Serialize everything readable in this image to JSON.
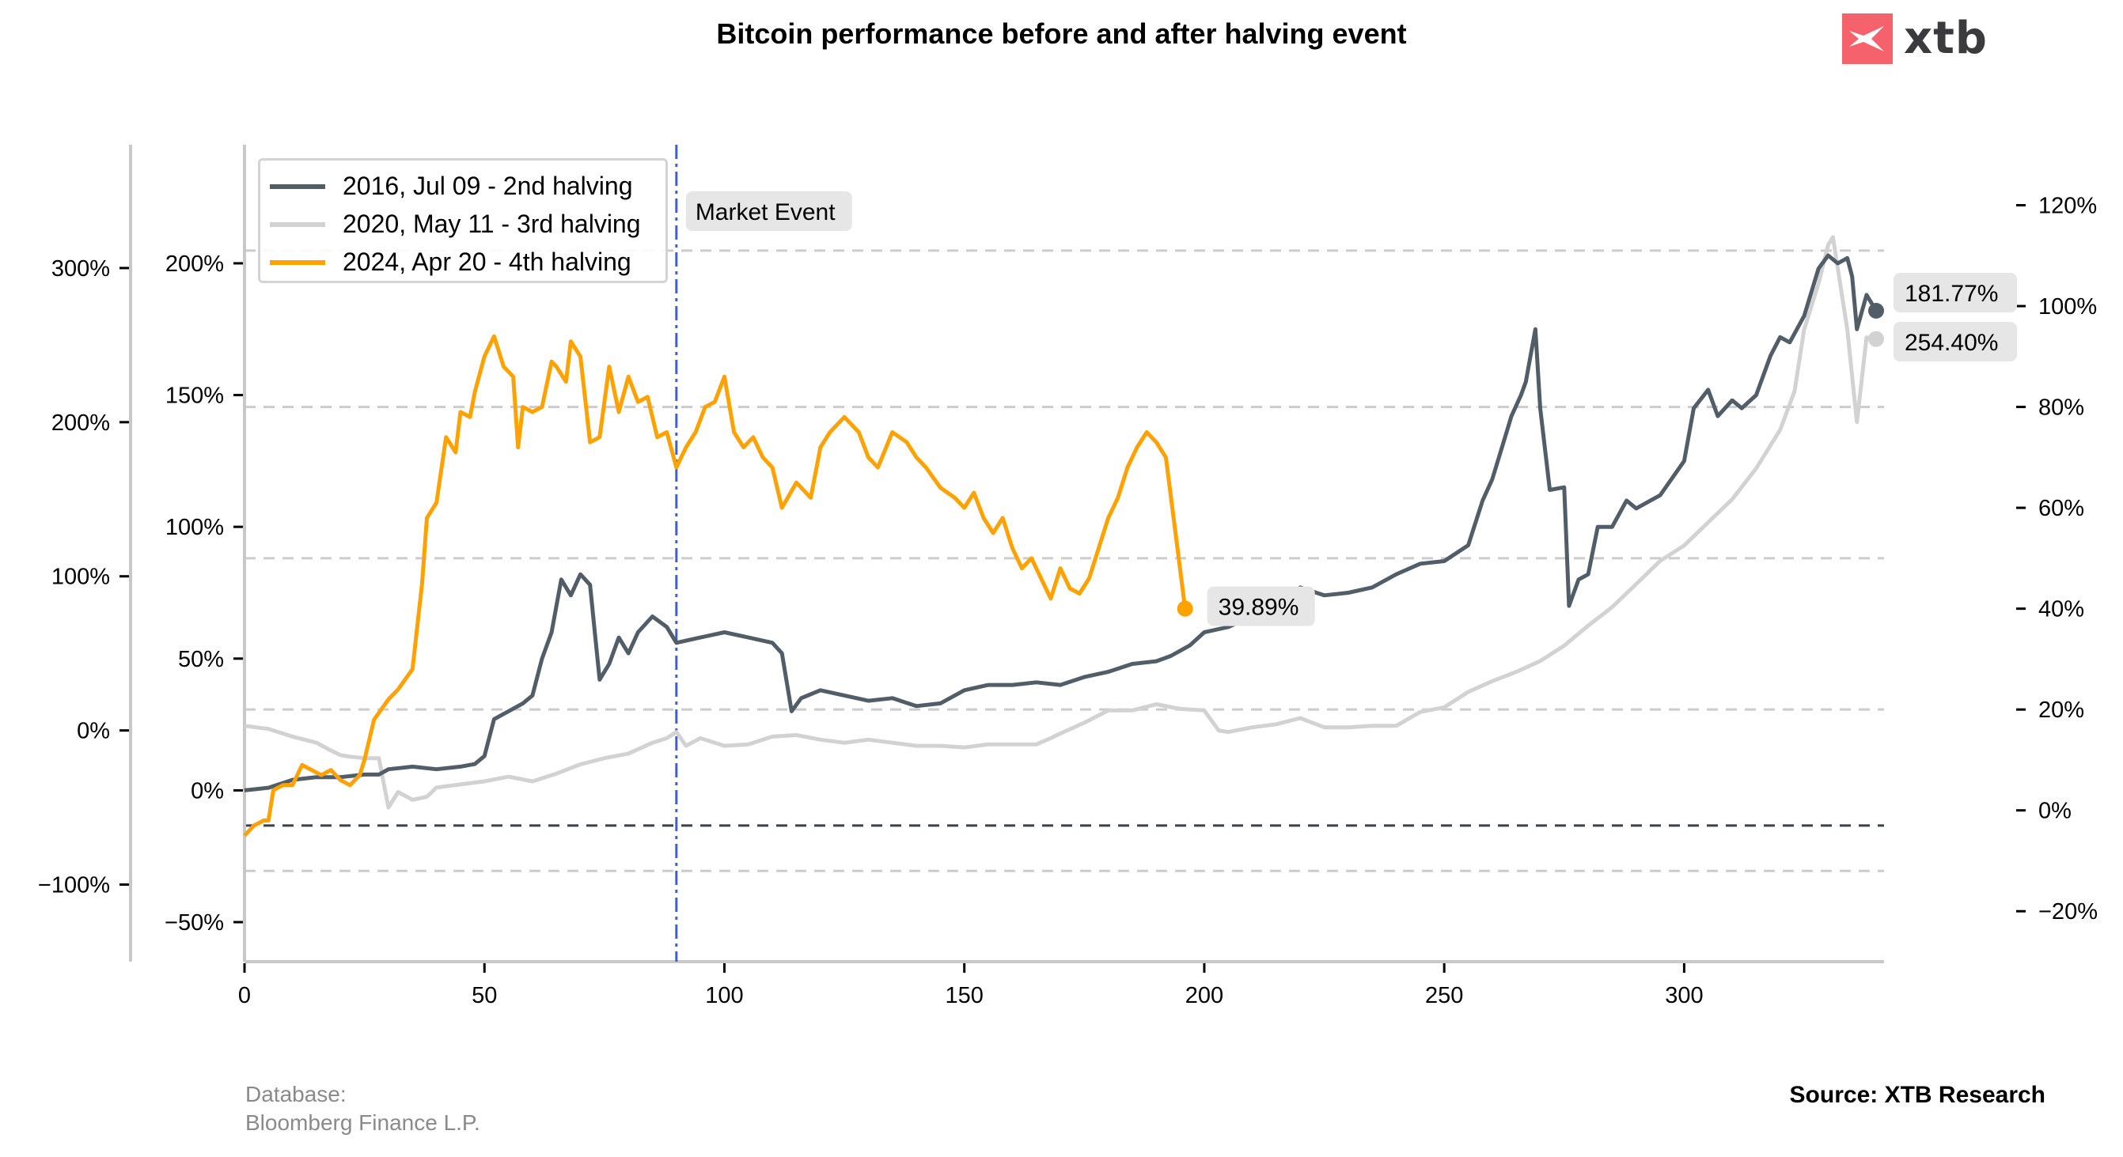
{
  "header": {
    "title": "Bitcoin performance before and after halving event",
    "logo_text": "xtb",
    "logo_color": "#f5626c"
  },
  "footer": {
    "database_label": "Database:",
    "database_value": "Bloomberg Finance L.P.",
    "source": "Source: XTB Research"
  },
  "chart_data": {
    "type": "line",
    "title": "Bitcoin performance before and after halving event",
    "xlabel": "",
    "xlim": [
      0,
      340
    ],
    "x_ticks": [
      0,
      50,
      100,
      150,
      200,
      250,
      300
    ],
    "axes": {
      "outer_left": {
        "ylim": [
          -150,
          380
        ],
        "ticks": [
          -100,
          0,
          100,
          200,
          300
        ],
        "tick_labels": [
          "−100%",
          "0%",
          "100%",
          "200%",
          "300%"
        ]
      },
      "inner_left": {
        "ylim": [
          -65,
          245
        ],
        "ticks": [
          -50,
          0,
          50,
          100,
          150,
          200
        ],
        "tick_labels": [
          "−50%",
          "0%",
          "50%",
          "100%",
          "150%",
          "200%"
        ]
      },
      "right": {
        "ylim": [
          -30,
          132
        ],
        "ticks": [
          -20,
          0,
          20,
          40,
          60,
          80,
          100,
          120
        ],
        "tick_labels": [
          "−20%",
          "0%",
          "20%",
          "40%",
          "60%",
          "80%",
          "100%",
          "120%"
        ]
      }
    },
    "gridlines_right_axis": [
      -12,
      20,
      50,
      80,
      111
    ],
    "zero_line_right_axis": -3,
    "market_event": {
      "x": 90,
      "label": "Market Event",
      "color": "#3a5fd9"
    },
    "series": [
      {
        "name": "2016, Jul 09 - 2nd halving",
        "color": "#515d67",
        "axis": "inner_left",
        "end_label": "181.77%",
        "x": [
          0,
          5,
          10,
          15,
          20,
          25,
          28,
          30,
          35,
          40,
          45,
          48,
          50,
          52,
          55,
          58,
          60,
          62,
          64,
          66,
          68,
          70,
          72,
          73,
          74,
          76,
          78,
          80,
          82,
          85,
          88,
          90,
          95,
          100,
          105,
          110,
          112,
          114,
          116,
          120,
          125,
          130,
          135,
          140,
          145,
          150,
          155,
          160,
          165,
          170,
          175,
          180,
          185,
          190,
          193,
          195,
          197,
          200,
          205,
          210,
          215,
          220,
          225,
          230,
          235,
          240,
          245,
          250,
          255,
          258,
          260,
          262,
          264,
          266,
          267,
          268,
          269,
          270,
          272,
          275,
          276,
          278,
          280,
          282,
          285,
          288,
          290,
          295,
          300,
          302,
          305,
          307,
          310,
          312,
          315,
          318,
          320,
          322,
          325,
          328,
          330,
          332,
          334,
          335,
          336,
          338,
          340
        ],
        "values": [
          0,
          1,
          4,
          5,
          5,
          6,
          6,
          8,
          9,
          8,
          9,
          10,
          13,
          27,
          30,
          33,
          36,
          50,
          60,
          80,
          74,
          82,
          78,
          60,
          42,
          48,
          58,
          52,
          60,
          66,
          62,
          56,
          58,
          60,
          58,
          56,
          52,
          30,
          35,
          38,
          36,
          34,
          35,
          32,
          33,
          38,
          40,
          40,
          41,
          40,
          43,
          45,
          48,
          49,
          51,
          53,
          55,
          60,
          62,
          66,
          70,
          77,
          74,
          75,
          77,
          82,
          86,
          87,
          93,
          110,
          118,
          130,
          142,
          150,
          155,
          165,
          175,
          145,
          114,
          115,
          70,
          80,
          82,
          100,
          100,
          110,
          107,
          112,
          125,
          145,
          152,
          142,
          148,
          145,
          150,
          165,
          172,
          170,
          180,
          198,
          203,
          200,
          202,
          195,
          175,
          188,
          182
        ]
      },
      {
        "name": "2020, May 11 - 3rd halving",
        "color": "#d2d2d2",
        "axis": "outer_left",
        "end_label": "254.40%",
        "x": [
          0,
          5,
          10,
          15,
          18,
          20,
          22,
          25,
          28,
          30,
          32,
          35,
          38,
          40,
          45,
          50,
          55,
          60,
          65,
          70,
          75,
          80,
          85,
          88,
          90,
          92,
          95,
          100,
          105,
          110,
          115,
          120,
          125,
          130,
          135,
          140,
          145,
          150,
          155,
          160,
          165,
          168,
          170,
          175,
          180,
          185,
          190,
          195,
          200,
          203,
          205,
          210,
          215,
          220,
          225,
          230,
          235,
          240,
          245,
          250,
          255,
          260,
          265,
          270,
          275,
          280,
          285,
          290,
          295,
          300,
          305,
          310,
          315,
          318,
          320,
          323,
          325,
          328,
          330,
          331,
          332,
          334,
          336,
          338,
          340
        ],
        "values": [
          3,
          1,
          -4,
          -8,
          -13,
          -16,
          -17,
          -18,
          -18,
          -50,
          -40,
          -45,
          -43,
          -37,
          -35,
          -33,
          -30,
          -33,
          -28,
          -22,
          -18,
          -15,
          -8,
          -5,
          -1,
          -10,
          -5,
          -10,
          -9,
          -4,
          -3,
          -6,
          -8,
          -6,
          -8,
          -10,
          -10,
          -11,
          -9,
          -9,
          -9,
          -5,
          -2,
          5,
          13,
          13,
          17,
          14,
          13,
          0,
          -1,
          2,
          4,
          8,
          2,
          2,
          3,
          3,
          12,
          15,
          25,
          32,
          38,
          45,
          55,
          68,
          80,
          95,
          110,
          120,
          135,
          150,
          170,
          185,
          195,
          220,
          260,
          290,
          315,
          320,
          300,
          260,
          200,
          255,
          254
        ]
      },
      {
        "name": "2024, Apr 20 - 4th halving",
        "color": "#ffa200",
        "axis": "right",
        "end_label": "39.89%",
        "x": [
          0,
          2,
          4,
          5,
          6,
          8,
          10,
          12,
          14,
          16,
          18,
          20,
          22,
          24,
          25,
          27,
          30,
          32,
          35,
          37,
          38,
          40,
          42,
          44,
          45,
          47,
          48,
          50,
          52,
          54,
          56,
          57,
          58,
          60,
          62,
          64,
          65,
          67,
          68,
          70,
          72,
          74,
          76,
          78,
          80,
          82,
          84,
          86,
          88,
          90,
          92,
          94,
          96,
          98,
          100,
          102,
          104,
          106,
          108,
          110,
          112,
          115,
          118,
          120,
          122,
          125,
          128,
          130,
          132,
          135,
          138,
          140,
          142,
          145,
          148,
          150,
          152,
          154,
          156,
          158,
          160,
          162,
          164,
          166,
          168,
          170,
          172,
          174,
          176,
          178,
          180,
          182,
          184,
          186,
          188,
          190,
          192,
          194,
          196
        ],
        "values": [
          -5,
          -3,
          -2,
          -2,
          4,
          5,
          5,
          9,
          8,
          7,
          8,
          6,
          5,
          7,
          10,
          18,
          22,
          24,
          28,
          45,
          58,
          61,
          74,
          71,
          79,
          78,
          83,
          90,
          94,
          88,
          86,
          72,
          80,
          79,
          80,
          89,
          88,
          85,
          93,
          90,
          73,
          74,
          88,
          79,
          86,
          81,
          82,
          74,
          75,
          68,
          72,
          75,
          80,
          81,
          86,
          75,
          72,
          74,
          70,
          68,
          60,
          65,
          62,
          72,
          75,
          78,
          75,
          70,
          68,
          75,
          73,
          70,
          68,
          64,
          62,
          60,
          63,
          58,
          55,
          58,
          52,
          48,
          50,
          46,
          42,
          48,
          44,
          43,
          46,
          52,
          58,
          62,
          68,
          72,
          75,
          73,
          70,
          55,
          40
        ],
        "end_value": 39.89
      }
    ]
  }
}
